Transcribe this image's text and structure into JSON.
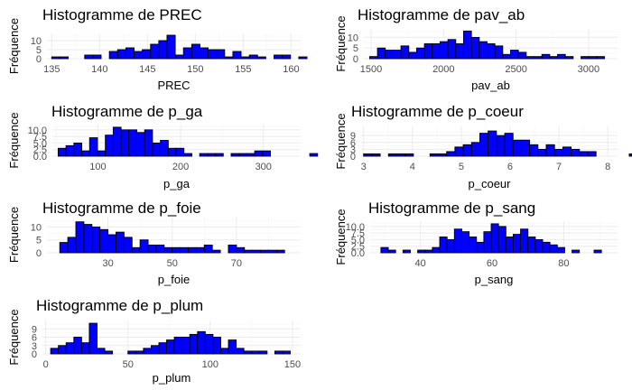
{
  "figure": {
    "panel_ids": [
      "prec",
      "pav_ab",
      "p_ga",
      "p_coeur",
      "p_foie",
      "p_sang",
      "p_plum"
    ]
  },
  "chart_data": [
    {
      "id": "prec",
      "type": "bar",
      "title": "Histogramme de PREC",
      "xlabel": "PREC",
      "ylabel": "Fréquence",
      "xlim": [
        134.5,
        161.0
      ],
      "ylim": [
        0,
        14
      ],
      "xticks": [
        135,
        140,
        145,
        150,
        155,
        160
      ],
      "yticks": [
        0,
        5,
        10
      ],
      "bin_start": 135.0,
      "bin_width": 0.86,
      "counts": [
        1,
        1,
        0,
        0,
        2,
        2,
        0,
        4,
        5,
        6,
        4,
        5,
        8,
        10,
        13,
        2,
        6,
        8,
        6,
        5,
        5,
        1,
        4,
        1,
        2,
        1,
        0,
        2,
        2,
        0,
        1
      ]
    },
    {
      "id": "pav_ab",
      "type": "bar",
      "title": "Histogramme de pav_ab",
      "xlabel": "pav_ab",
      "ylabel": "Fréquence",
      "xlim": [
        1450,
        3200
      ],
      "ylim": [
        0,
        14
      ],
      "xticks": [
        1500,
        2000,
        2500,
        3000
      ],
      "yticks": [
        0,
        5,
        10
      ],
      "bin_start": 1490,
      "bin_width": 54,
      "counts": [
        1,
        5,
        4,
        4,
        6,
        3,
        5,
        7,
        7,
        8,
        9,
        7,
        13,
        10,
        8,
        7,
        6,
        2,
        4,
        3,
        1,
        1,
        2,
        1,
        2,
        1,
        0,
        1,
        1,
        1
      ]
    },
    {
      "id": "p_ga",
      "type": "bar",
      "title": "Histogramme de p_ga",
      "xlabel": "p_ga",
      "ylabel": "Fréquence",
      "xlim": [
        45,
        345
      ],
      "ylim": [
        0,
        12
      ],
      "xticks": [
        100,
        200,
        300
      ],
      "yticks": [
        0.0,
        2.5,
        5.0,
        7.5,
        10.0
      ],
      "ytick_labels": [
        "0.0",
        "2.5",
        "5.0",
        "7.5",
        "10.0"
      ],
      "bin_start": 52,
      "bin_width": 9.5,
      "counts": [
        3,
        4,
        5,
        2,
        7,
        2,
        8,
        11,
        10,
        10,
        9,
        10,
        5,
        6,
        3,
        3,
        1,
        0,
        1,
        1,
        1,
        0,
        1,
        1,
        1,
        2,
        2,
        0,
        0,
        0,
        0,
        0,
        1
      ]
    },
    {
      "id": "p_coeur",
      "type": "bar",
      "title": "Histogramme de p_coeur",
      "xlabel": "p_coeur",
      "ylabel": "Fréquence",
      "xlim": [
        2.95,
        8.2
      ],
      "ylim": [
        0,
        13
      ],
      "xticks": [
        3,
        4,
        5,
        6,
        7,
        8
      ],
      "yticks": [
        0,
        3,
        6,
        9
      ],
      "bin_start": 3.0,
      "bin_width": 0.17,
      "counts": [
        1,
        1,
        0,
        1,
        1,
        1,
        0,
        0,
        1,
        1,
        2,
        4,
        5,
        6,
        10,
        11,
        9,
        10,
        7,
        7,
        5,
        3,
        5,
        3,
        4,
        3,
        2,
        2,
        0,
        0,
        0,
        0,
        1,
        0,
        0,
        0,
        0,
        0,
        2
      ]
    },
    {
      "id": "p_foie",
      "type": "bar",
      "title": "Histogramme de p_foie",
      "xlabel": "p_foie",
      "ylabel": "Fréquence",
      "xlim": [
        11,
        90
      ],
      "ylim": [
        0,
        14
      ],
      "xticks": [
        30,
        50,
        70
      ],
      "yticks": [
        0,
        5,
        10
      ],
      "bin_start": 15,
      "bin_width": 2.5,
      "counts": [
        4,
        6,
        12,
        11,
        10,
        9,
        7,
        8,
        6,
        2,
        5,
        3,
        3,
        2,
        2,
        2,
        2,
        2,
        3,
        1,
        0,
        3,
        2,
        1,
        1,
        1,
        1,
        1
      ]
    },
    {
      "id": "p_sang",
      "type": "bar",
      "title": "Histogramme de p_sang",
      "xlabel": "p_sang",
      "ylabel": "Fréquence",
      "xlim": [
        26,
        95
      ],
      "ylim": [
        0,
        12
      ],
      "xticks": [
        40,
        60,
        80
      ],
      "yticks": [
        0.0,
        2.5,
        5.0,
        7.5,
        10.0
      ],
      "ytick_labels": [
        "0.0",
        "2.5",
        "5.0",
        "7.5",
        "10.0"
      ],
      "bin_start": 29.0,
      "bin_width": 2.05,
      "counts": [
        2,
        1,
        0,
        1,
        0,
        1,
        1,
        2,
        6,
        5,
        9,
        8,
        6,
        4,
        8,
        11,
        10,
        6,
        7,
        9,
        6,
        5,
        4,
        3,
        2,
        0,
        1,
        0,
        0,
        1
      ]
    },
    {
      "id": "p_plum",
      "type": "bar",
      "title": "Histogramme de p_plum",
      "xlabel": "p_plum",
      "ylabel": "Fréquence",
      "xlim": [
        -2,
        155
      ],
      "ylim": [
        0,
        12
      ],
      "xticks": [
        0,
        50,
        100,
        150
      ],
      "yticks": [
        0,
        3,
        6,
        9
      ],
      "bin_start": 3,
      "bin_width": 4.7,
      "counts": [
        2,
        3,
        4,
        6,
        4,
        11,
        2,
        1,
        0,
        0,
        1,
        1,
        2,
        3,
        4,
        5,
        6,
        6,
        7,
        8,
        7,
        6,
        2,
        5,
        2,
        1,
        1,
        1,
        0,
        1,
        1
      ]
    }
  ]
}
